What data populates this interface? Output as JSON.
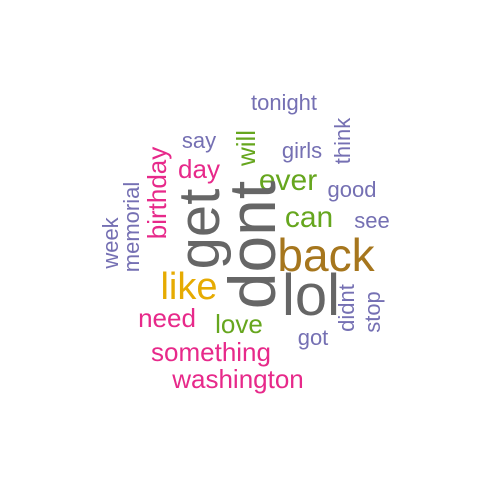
{
  "words": [
    {
      "text": "tonight",
      "color": "#7570b3"
    },
    {
      "text": "say",
      "color": "#7570b3"
    },
    {
      "text": "girls",
      "color": "#7570b3"
    },
    {
      "text": "think",
      "color": "#7570b3"
    },
    {
      "text": "birthday",
      "color": "#e7298a"
    },
    {
      "text": "day",
      "color": "#e7298a"
    },
    {
      "text": "will",
      "color": "#66a61e"
    },
    {
      "text": "ever",
      "color": "#66a61e"
    },
    {
      "text": "good",
      "color": "#7570b3"
    },
    {
      "text": "memorial",
      "color": "#7570b3"
    },
    {
      "text": "week",
      "color": "#7570b3"
    },
    {
      "text": "get",
      "color": "#666666"
    },
    {
      "text": "can",
      "color": "#66a61e"
    },
    {
      "text": "see",
      "color": "#7570b3"
    },
    {
      "text": "dont",
      "color": "#666666"
    },
    {
      "text": "back",
      "color": "#a6761d"
    },
    {
      "text": "like",
      "color": "#e6ab02"
    },
    {
      "text": "lol",
      "color": "#666666"
    },
    {
      "text": "didnt",
      "color": "#7570b3"
    },
    {
      "text": "stop",
      "color": "#7570b3"
    },
    {
      "text": "need",
      "color": "#e7298a"
    },
    {
      "text": "love",
      "color": "#66a61e"
    },
    {
      "text": "got",
      "color": "#7570b3"
    },
    {
      "text": "something",
      "color": "#e7298a"
    },
    {
      "text": "washington",
      "color": "#e7298a"
    }
  ]
}
